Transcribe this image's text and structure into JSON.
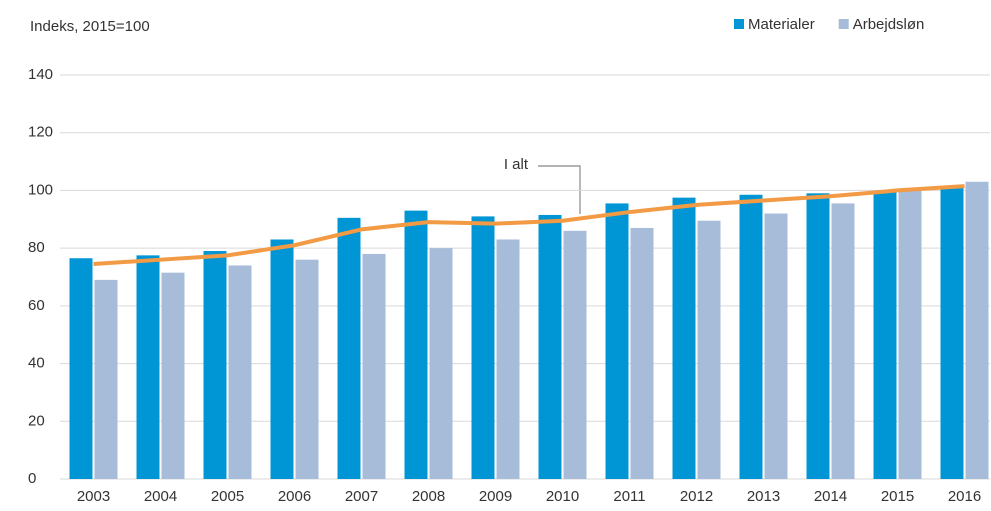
{
  "chart_data": {
    "type": "bar",
    "y_label": "Indeks,  2015=100",
    "categories": [
      "2003",
      "2004",
      "2005",
      "2006",
      "2007",
      "2008",
      "2009",
      "2010",
      "2011",
      "2012",
      "2013",
      "2014",
      "2015",
      "2016"
    ],
    "series": [
      {
        "name": "Materialer",
        "color": "#0096d6",
        "values": [
          76.5,
          77.5,
          79,
          83,
          90.5,
          93,
          91,
          91.5,
          95.5,
          97.5,
          98.5,
          99,
          100,
          101
        ]
      },
      {
        "name": "Arbejdsløn",
        "color": "#a7bcd9",
        "values": [
          69,
          71.5,
          74,
          76,
          78,
          80,
          83,
          86,
          87,
          89.5,
          92,
          95.5,
          100,
          103
        ]
      },
      {
        "name": "I alt",
        "type": "line",
        "color": "#f29a44",
        "values": [
          74.5,
          76,
          77.5,
          81,
          86.5,
          89,
          88.5,
          89.5,
          92.5,
          95,
          96.5,
          98,
          100,
          101.5
        ]
      }
    ],
    "ylim": [
      0,
      140
    ],
    "yticks": [
      0,
      20,
      40,
      60,
      80,
      100,
      120,
      140
    ],
    "grid": true,
    "legend": "top-right"
  }
}
